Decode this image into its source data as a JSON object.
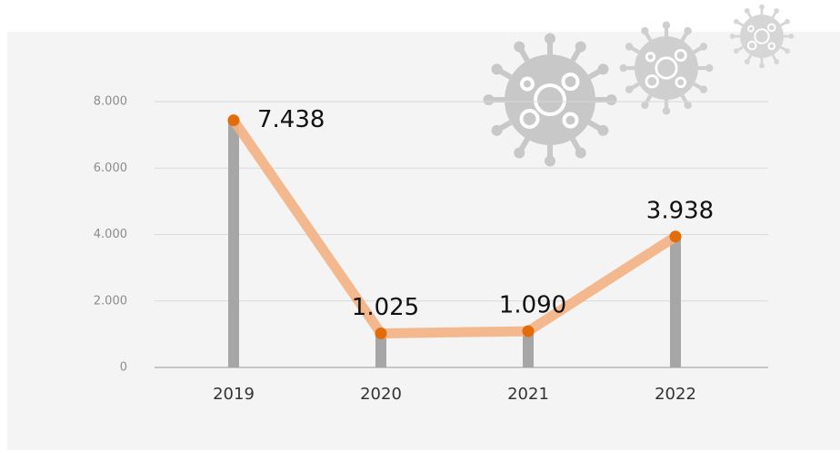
{
  "chart_data": {
    "type": "line",
    "categories": [
      "2019",
      "2020",
      "2021",
      "2022"
    ],
    "values": [
      7438,
      1025,
      1090,
      3938
    ],
    "value_labels": [
      "7.438",
      "1.025",
      "1.090",
      "3.938"
    ],
    "color": "#f4b183",
    "marker_color": "#e36c0a",
    "bar_color": "#a6a6a6",
    "ylim": [
      0,
      8000
    ],
    "yticks": [
      0,
      {
        "value": 2000,
        "label": "2.000"
      },
      {
        "value": 4000,
        "label": "4.000"
      },
      {
        "value": 6000,
        "label": "6.000"
      },
      {
        "value": 8000,
        "label": "8.000"
      }
    ],
    "grid": true
  }
}
